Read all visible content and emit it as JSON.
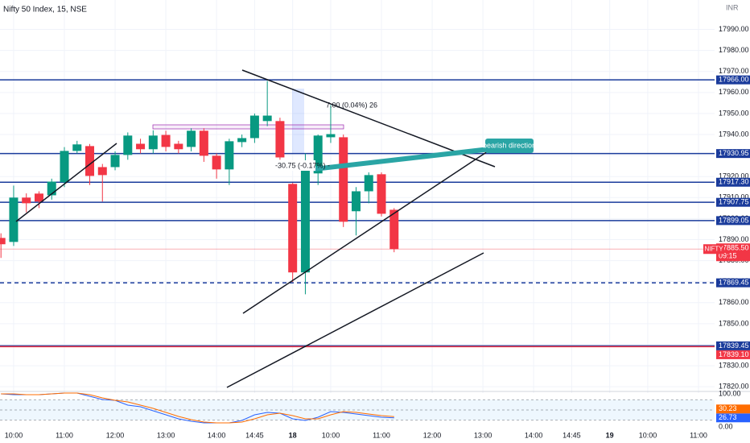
{
  "chart_data": {
    "type": "candlestick",
    "title": "Nifty 50 Index, 15, NSE",
    "currency": "INR",
    "categories": [
      null,
      "10:00",
      null,
      null,
      null,
      "11:00",
      null,
      null,
      null,
      "12:00",
      null,
      null,
      null,
      "13:00",
      null,
      null,
      null,
      "14:00",
      null,
      null,
      "14:45",
      null,
      null,
      "18",
      null,
      null,
      "10:00",
      null,
      null,
      null,
      "11:00",
      null,
      null,
      null,
      "12:00",
      null,
      null,
      null,
      "13:00",
      null,
      null,
      null,
      "14:00",
      null,
      null,
      "14:45",
      null,
      null,
      "19",
      null,
      null,
      "10:00",
      null,
      null,
      null,
      "11:00"
    ],
    "open": [
      17890.8,
      17888.9,
      17910,
      17911.9,
      17911.1,
      17917.3,
      17932.2,
      17934.5,
      17924.5,
      17924.5,
      17930.3,
      17935.6,
      17933,
      17939.8,
      17935.6,
      17934.1,
      17941.8,
      17929.9,
      17923.4,
      17936.4,
      17938.3,
      17946.4,
      17946.4,
      17916.5,
      17874.4,
      17921.5,
      17938.7,
      17938.7,
      17903.5,
      17913,
      17921.1,
      17904.2,
      null,
      null,
      null,
      null,
      null,
      null,
      null,
      null,
      null,
      null,
      null,
      null,
      null,
      null,
      null,
      null,
      null,
      null,
      null,
      null,
      null,
      null,
      null,
      null
    ],
    "high": [
      17893,
      17915.7,
      17912,
      17913,
      17919,
      17934,
      17937,
      17935.5,
      17926,
      17932,
      17941,
      17938,
      17942,
      17941.8,
      17937,
      17943,
      17943,
      17931,
      17938,
      17940,
      17950,
      17965.5,
      17948,
      17917,
      17931,
      17940,
      17954,
      17940,
      17915,
      17922,
      17922,
      17905,
      null,
      null,
      null,
      null,
      null,
      null,
      null,
      null,
      null,
      null,
      null,
      null,
      null,
      null,
      null,
      null,
      null,
      null,
      null,
      null,
      null,
      null,
      null,
      null
    ],
    "low": [
      17881.3,
      17887,
      17903,
      17905,
      17909,
      17915,
      17931,
      17916,
      17908.1,
      17923,
      17928,
      17931,
      17931,
      17932,
      17931,
      17932,
      17927,
      17919,
      17916,
      17934,
      17936,
      17944,
      17928,
      17869.8,
      17864,
      17916,
      17936,
      17896,
      17892,
      17907.3,
      17901,
      17884,
      null,
      null,
      null,
      null,
      null,
      null,
      null,
      null,
      null,
      null,
      null,
      null,
      null,
      null,
      null,
      null,
      null,
      null,
      null,
      null,
      null,
      null,
      null,
      null
    ],
    "close": [
      17887.8,
      17910,
      17907.3,
      17908.1,
      17917.6,
      17932.2,
      17935.3,
      17920.3,
      17920.7,
      17930.3,
      17939.5,
      17933,
      17939.5,
      17934.1,
      17933,
      17941.8,
      17929.9,
      17923.4,
      17936.8,
      17938.3,
      17949,
      17949,
      17929.1,
      17874.4,
      17927.2,
      17939.5,
      17940.2,
      17898.5,
      17913,
      17920.7,
      17902.3,
      17885.5,
      null,
      null,
      null,
      null,
      null,
      null,
      null,
      null,
      null,
      null,
      null,
      null,
      null,
      null,
      null,
      null,
      null,
      null,
      null,
      null,
      null,
      null,
      null,
      null
    ],
    "up_color": "#089981",
    "down_color": "#f23645",
    "ylim": [
      17817,
      18004
    ],
    "yticks": [
      {
        "value": 17820,
        "label": "17820.00"
      },
      {
        "value": 17830,
        "label": "17830.00"
      },
      {
        "value": 17840,
        "label": "17840.00"
      },
      {
        "value": 17850,
        "label": "17850.00"
      },
      {
        "value": 17860,
        "label": "17860.00"
      },
      {
        "value": 17870,
        "label": "17870.00"
      },
      {
        "value": 17880,
        "label": "17880.00"
      },
      {
        "value": 17890,
        "label": "17890.00"
      },
      {
        "value": 17900,
        "label": "17900.00"
      },
      {
        "value": 17910,
        "label": "17910.00"
      },
      {
        "value": 17920,
        "label": "17920.00"
      },
      {
        "value": 17930,
        "label": "17930.00"
      },
      {
        "value": 17940,
        "label": "17940.00"
      },
      {
        "value": 17950,
        "label": "17950.00"
      },
      {
        "value": 17960,
        "label": "17960.00"
      },
      {
        "value": 17970,
        "label": "17970.00"
      },
      {
        "value": 17980,
        "label": "17980.00"
      },
      {
        "value": 17990,
        "label": "17990.00"
      }
    ],
    "grid": true,
    "levels": [
      {
        "value": 17966,
        "label": "17966.00",
        "color": "#1a3b9b"
      },
      {
        "value": 17930.95,
        "label": "17930.95",
        "color": "#1a3b9b"
      },
      {
        "value": 17917.3,
        "label": "17917.30",
        "color": "#1a3b9b"
      },
      {
        "value": 17907.75,
        "label": "17907.75",
        "color": "#1a3b9b"
      },
      {
        "value": 17899.05,
        "label": "17899.05",
        "color": "#1a3b9b"
      },
      {
        "value": 17869.45,
        "label": "17869.45",
        "color": "#1a3b9b",
        "dashed": true
      },
      {
        "value": 17839.45,
        "label": "17839.45",
        "color": "#1a3b9b"
      },
      {
        "value": 17839.1,
        "label": "17839.10",
        "color": "#f23645"
      }
    ],
    "last_price": {
      "name": "NIFTY",
      "value": 17885.5,
      "label": "17885.50",
      "countdown": "09:15",
      "color": "#f23645"
    },
    "annotations": {
      "callout": "bearish direction",
      "range_down": "-30.75 (-0.17%) -",
      "range_up": "7.00 (0.04%) 26"
    },
    "indicator": {
      "ylim": [
        0,
        100
      ],
      "yticks": [
        {
          "value": 100,
          "label": "100.00"
        },
        {
          "value": 0,
          "label": "0.00"
        }
      ],
      "series": [
        {
          "color": "#2962ff",
          "values": [
            97.6,
            95.2,
            95.2,
            95.2,
            97.6,
            100,
            100,
            90.5,
            81,
            78.6,
            64.3,
            59.5,
            47.6,
            35.7,
            23.8,
            16.7,
            11.9,
            11.9,
            11.9,
            19,
            35.7,
            42.9,
            40.5,
            23.8,
            19,
            28.6,
            45.2,
            42.9,
            38.1,
            33.3,
            28.6,
            26.73,
            null,
            null,
            null,
            null,
            null,
            null,
            null,
            null,
            null,
            null,
            null,
            null,
            null,
            null,
            null,
            null,
            null,
            null,
            null,
            null,
            null,
            null,
            null,
            null
          ]
        },
        {
          "color": "#ff6d00",
          "values": [
            97.6,
            97.6,
            95.2,
            95.2,
            97.6,
            100,
            100,
            95.2,
            85.7,
            78.6,
            73.8,
            64.3,
            54.8,
            42.9,
            31,
            21.4,
            14.3,
            11.9,
            11.9,
            14.3,
            23.8,
            35.7,
            40.5,
            33.3,
            23.8,
            23.8,
            35.7,
            45.2,
            42.9,
            38.1,
            33.3,
            30.23,
            null,
            null,
            null,
            null,
            null,
            null,
            null,
            null,
            null,
            null,
            null,
            null,
            null,
            null,
            null,
            null,
            null,
            null,
            null,
            null,
            null,
            null,
            null,
            null
          ]
        }
      ]
    }
  }
}
